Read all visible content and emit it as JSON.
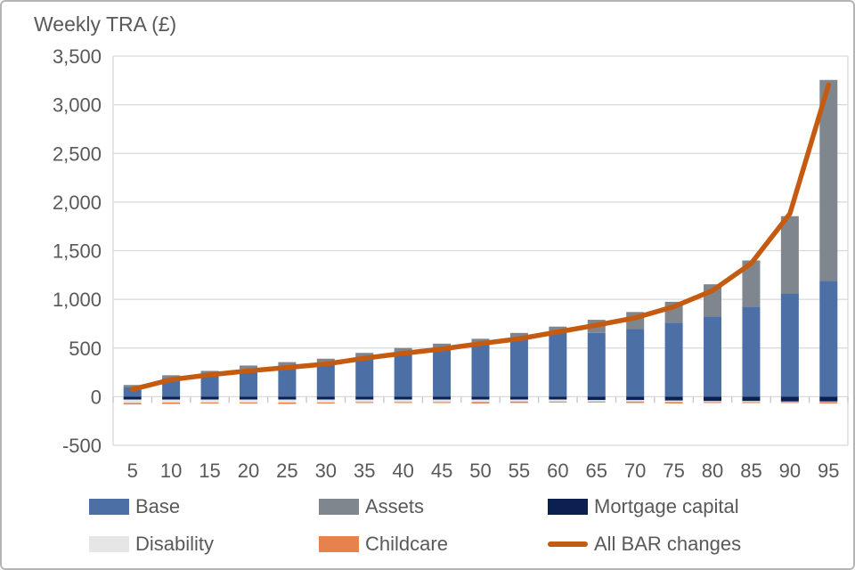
{
  "title": "Weekly TRA (£)",
  "colors": {
    "text": "#595959",
    "gridline": "#d9d9d9",
    "axis_tick": "#c6c6c6",
    "background": "#ffffff"
  },
  "chart_data": {
    "type": "bar",
    "subtype": "stacked-bar-with-line",
    "title": "Weekly TRA (£)",
    "xlabel": "",
    "ylabel": "Weekly TRA (£)",
    "ylim": [
      -500,
      3500
    ],
    "ytick_step": 500,
    "ytick_labels": [
      "-500",
      "0",
      "500",
      "1,000",
      "1,500",
      "2,000",
      "2,500",
      "3,000",
      "3,500"
    ],
    "grid": true,
    "legend_position": "bottom",
    "categories": [
      5,
      10,
      15,
      20,
      25,
      30,
      35,
      40,
      45,
      50,
      55,
      60,
      65,
      70,
      75,
      80,
      85,
      90,
      95
    ],
    "series": [
      {
        "name": "Base",
        "type": "bar",
        "color": "#4c70a5",
        "values": [
          95,
          190,
          235,
          285,
          310,
          350,
          405,
          450,
          490,
          555,
          610,
          660,
          655,
          695,
          760,
          825,
          925,
          1060,
          1190
        ]
      },
      {
        "name": "Assets",
        "type": "bar",
        "color": "#7f868e",
        "values": [
          25,
          30,
          30,
          35,
          45,
          40,
          45,
          50,
          55,
          40,
          45,
          60,
          135,
          175,
          215,
          330,
          475,
          795,
          2065
        ]
      },
      {
        "name": "Mortgage capital",
        "type": "bar",
        "color": "#0b2050",
        "values": [
          -30,
          -30,
          -30,
          -30,
          -30,
          -30,
          -30,
          -30,
          -30,
          -30,
          -30,
          -30,
          -35,
          -35,
          -40,
          -45,
          -45,
          -50,
          -50
        ]
      },
      {
        "name": "Disability",
        "type": "bar",
        "color": "#e6e6e6",
        "values": [
          -35,
          -30,
          -30,
          -30,
          -30,
          -30,
          -25,
          -25,
          -25,
          -25,
          -20,
          -20,
          -15,
          -15,
          -15,
          -10,
          -10,
          -5,
          -5
        ]
      },
      {
        "name": "Childcare",
        "type": "bar",
        "color": "#e5824d",
        "values": [
          -15,
          -15,
          -10,
          -10,
          -15,
          -10,
          -10,
          -10,
          -10,
          -15,
          -15,
          -10,
          -10,
          -15,
          -15,
          -10,
          -10,
          -10,
          -15
        ]
      },
      {
        "name": "All BAR changes",
        "type": "line",
        "color": "#c55a11",
        "values": [
          75,
          175,
          225,
          265,
          300,
          335,
          395,
          445,
          490,
          545,
          595,
          665,
          735,
          810,
          925,
          1090,
          1370,
          1880,
          3205
        ]
      }
    ]
  }
}
